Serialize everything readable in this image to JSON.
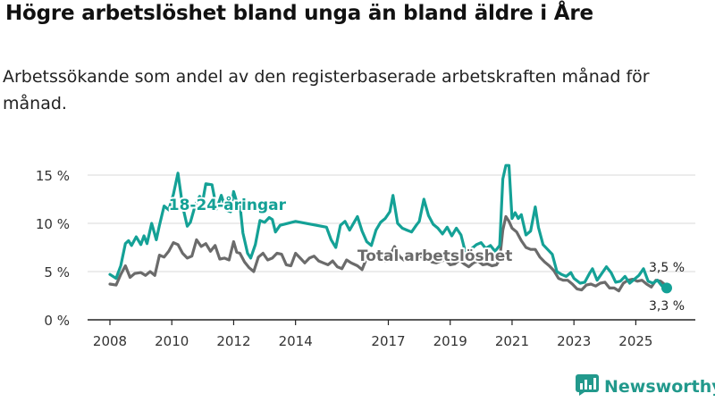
{
  "title": "Högre arbetslöshet bland unga än bland äldre i Åre",
  "subtitle": "Arbetssökande som andel av den registerbaserade arbetskraften månad för månad.",
  "brand": {
    "name": "Newsworthy",
    "icon": "newsworthy-chart-logo-icon",
    "color": "#22998c"
  },
  "colors": {
    "young": "#14a196",
    "total": "#6b6b6b",
    "grid": "#d9d9d9",
    "axis": "#333333"
  },
  "chart_data": {
    "type": "line",
    "title": "Högre arbetslöshet bland unga än bland äldre i Åre",
    "xlabel": "",
    "ylabel": "",
    "xlim": [
      2008,
      2026.5
    ],
    "ylim": [
      0,
      15
    ],
    "grid": true,
    "x_ticks": [
      2008,
      2010,
      2012,
      2014,
      2017,
      2019,
      2021,
      2023,
      2025
    ],
    "x_tick_labels": [
      "2008",
      "2010",
      "2012",
      "2014",
      "2017",
      "2019",
      "2021",
      "2023",
      "2025"
    ],
    "y_ticks": [
      0,
      5,
      10,
      15
    ],
    "y_tick_labels": [
      "0 %",
      "5 %",
      "10 %",
      "15 %"
    ],
    "series": [
      {
        "name": "18-24-åringar",
        "label_at": [
          2009.9,
          11.4
        ],
        "end_value_label": "3,3 %",
        "points": [
          [
            2008.0,
            4.7
          ],
          [
            2008.2,
            4.3
          ],
          [
            2008.35,
            5.6
          ],
          [
            2008.5,
            7.9
          ],
          [
            2008.6,
            8.2
          ],
          [
            2008.7,
            7.7
          ],
          [
            2008.85,
            8.6
          ],
          [
            2009.0,
            7.8
          ],
          [
            2009.1,
            8.7
          ],
          [
            2009.2,
            7.9
          ],
          [
            2009.35,
            10.0
          ],
          [
            2009.5,
            8.3
          ],
          [
            2009.6,
            9.8
          ],
          [
            2009.75,
            11.8
          ],
          [
            2009.9,
            11.4
          ],
          [
            2010.05,
            13.0
          ],
          [
            2010.2,
            15.2
          ],
          [
            2010.35,
            11.8
          ],
          [
            2010.5,
            9.7
          ],
          [
            2010.6,
            10.1
          ],
          [
            2010.75,
            11.8
          ],
          [
            2010.9,
            12.8
          ],
          [
            2011.0,
            12.3
          ],
          [
            2011.1,
            14.1
          ],
          [
            2011.3,
            14.0
          ],
          [
            2011.45,
            11.5
          ],
          [
            2011.6,
            12.9
          ],
          [
            2011.75,
            11.4
          ],
          [
            2011.9,
            11.2
          ],
          [
            2012.0,
            13.3
          ],
          [
            2012.1,
            12.2
          ],
          [
            2012.2,
            12.0
          ],
          [
            2012.3,
            9.0
          ],
          [
            2012.45,
            6.9
          ],
          [
            2012.55,
            6.4
          ],
          [
            2012.7,
            7.8
          ],
          [
            2012.85,
            10.3
          ],
          [
            2013.0,
            10.1
          ],
          [
            2013.15,
            10.6
          ],
          [
            2013.25,
            10.4
          ],
          [
            2013.35,
            9.1
          ],
          [
            2013.5,
            9.8
          ],
          [
            2014.0,
            10.2
          ],
          [
            2014.5,
            9.9
          ],
          [
            2015.0,
            9.6
          ],
          [
            2015.15,
            8.3
          ],
          [
            2015.3,
            7.5
          ],
          [
            2015.45,
            9.8
          ],
          [
            2015.6,
            10.2
          ],
          [
            2015.75,
            9.3
          ],
          [
            2016.0,
            10.7
          ],
          [
            2016.15,
            9.2
          ],
          [
            2016.3,
            8.1
          ],
          [
            2016.45,
            7.7
          ],
          [
            2016.6,
            9.3
          ],
          [
            2016.75,
            10.1
          ],
          [
            2016.9,
            10.5
          ],
          [
            2017.05,
            11.2
          ],
          [
            2017.15,
            12.9
          ],
          [
            2017.3,
            10.0
          ],
          [
            2017.45,
            9.5
          ],
          [
            2017.6,
            9.3
          ],
          [
            2017.75,
            9.1
          ],
          [
            2017.9,
            9.8
          ],
          [
            2018.0,
            10.2
          ],
          [
            2018.15,
            12.5
          ],
          [
            2018.3,
            10.8
          ],
          [
            2018.45,
            9.9
          ],
          [
            2018.6,
            9.5
          ],
          [
            2018.75,
            8.9
          ],
          [
            2018.9,
            9.6
          ],
          [
            2019.05,
            8.7
          ],
          [
            2019.2,
            9.5
          ],
          [
            2019.35,
            8.8
          ],
          [
            2019.5,
            6.9
          ],
          [
            2019.7,
            7.4
          ],
          [
            2019.85,
            7.8
          ],
          [
            2020.0,
            8.0
          ],
          [
            2020.15,
            7.4
          ],
          [
            2020.3,
            7.7
          ],
          [
            2020.45,
            7.1
          ],
          [
            2020.6,
            7.7
          ],
          [
            2020.7,
            14.6
          ],
          [
            2020.8,
            16.0
          ],
          [
            2020.9,
            16.0
          ],
          [
            2021.0,
            10.5
          ],
          [
            2021.1,
            11.1
          ],
          [
            2021.2,
            10.5
          ],
          [
            2021.3,
            10.9
          ],
          [
            2021.45,
            8.8
          ],
          [
            2021.6,
            9.2
          ],
          [
            2021.75,
            11.7
          ],
          [
            2021.85,
            9.6
          ],
          [
            2022.0,
            7.8
          ],
          [
            2022.15,
            7.3
          ],
          [
            2022.3,
            6.8
          ],
          [
            2022.45,
            5.0
          ],
          [
            2022.6,
            4.7
          ],
          [
            2022.75,
            4.5
          ],
          [
            2022.9,
            4.9
          ],
          [
            2023.0,
            4.3
          ],
          [
            2023.2,
            3.8
          ],
          [
            2023.35,
            3.9
          ],
          [
            2023.5,
            4.8
          ],
          [
            2023.6,
            5.3
          ],
          [
            2023.75,
            4.1
          ],
          [
            2023.9,
            4.8
          ],
          [
            2024.05,
            5.5
          ],
          [
            2024.2,
            4.9
          ],
          [
            2024.35,
            3.9
          ],
          [
            2024.5,
            4.0
          ],
          [
            2024.65,
            4.5
          ],
          [
            2024.8,
            3.8
          ],
          [
            2024.95,
            4.2
          ],
          [
            2025.1,
            4.6
          ],
          [
            2025.25,
            5.3
          ],
          [
            2025.4,
            4.0
          ],
          [
            2025.55,
            3.8
          ],
          [
            2025.7,
            4.1
          ],
          [
            2025.85,
            3.5
          ],
          [
            2026.0,
            3.3
          ]
        ]
      },
      {
        "name": "Total arbetslöshet",
        "label_at": [
          2016.0,
          6.1
        ],
        "end_value_label": "3,5 %",
        "points": [
          [
            2008.0,
            3.7
          ],
          [
            2008.2,
            3.6
          ],
          [
            2008.35,
            4.7
          ],
          [
            2008.5,
            5.6
          ],
          [
            2008.65,
            4.4
          ],
          [
            2008.8,
            4.8
          ],
          [
            2009.0,
            4.9
          ],
          [
            2009.15,
            4.6
          ],
          [
            2009.3,
            5.0
          ],
          [
            2009.45,
            4.6
          ],
          [
            2009.6,
            6.7
          ],
          [
            2009.75,
            6.5
          ],
          [
            2009.9,
            7.1
          ],
          [
            2010.05,
            8.0
          ],
          [
            2010.2,
            7.8
          ],
          [
            2010.35,
            6.9
          ],
          [
            2010.5,
            6.4
          ],
          [
            2010.65,
            6.6
          ],
          [
            2010.8,
            8.3
          ],
          [
            2010.95,
            7.6
          ],
          [
            2011.1,
            7.9
          ],
          [
            2011.25,
            7.1
          ],
          [
            2011.4,
            7.7
          ],
          [
            2011.55,
            6.3
          ],
          [
            2011.7,
            6.4
          ],
          [
            2011.85,
            6.2
          ],
          [
            2012.0,
            8.1
          ],
          [
            2012.1,
            7.0
          ],
          [
            2012.2,
            6.9
          ],
          [
            2012.35,
            6.0
          ],
          [
            2012.5,
            5.4
          ],
          [
            2012.65,
            5.0
          ],
          [
            2012.8,
            6.5
          ],
          [
            2012.95,
            6.9
          ],
          [
            2013.1,
            6.2
          ],
          [
            2013.25,
            6.4
          ],
          [
            2013.4,
            6.9
          ],
          [
            2013.55,
            6.8
          ],
          [
            2013.7,
            5.7
          ],
          [
            2013.85,
            5.6
          ],
          [
            2014.0,
            6.9
          ],
          [
            2014.15,
            6.4
          ],
          [
            2014.3,
            5.9
          ],
          [
            2014.45,
            6.4
          ],
          [
            2014.6,
            6.6
          ],
          [
            2014.75,
            6.1
          ],
          [
            2014.9,
            5.9
          ],
          [
            2015.05,
            5.7
          ],
          [
            2015.2,
            6.1
          ],
          [
            2015.35,
            5.5
          ],
          [
            2015.5,
            5.3
          ],
          [
            2015.65,
            6.2
          ],
          [
            2015.8,
            5.9
          ],
          [
            2016.0,
            5.6
          ],
          [
            2016.15,
            5.2
          ],
          [
            2016.3,
            6.4
          ],
          [
            2016.45,
            6.1
          ],
          [
            2016.6,
            6.5
          ],
          [
            2016.75,
            6.9
          ],
          [
            2016.9,
            6.1
          ],
          [
            2017.05,
            6.6
          ],
          [
            2017.2,
            7.6
          ],
          [
            2017.35,
            6.6
          ],
          [
            2017.5,
            6.2
          ],
          [
            2017.65,
            6.4
          ],
          [
            2017.8,
            6.3
          ],
          [
            2017.95,
            6.6
          ],
          [
            2018.1,
            6.5
          ],
          [
            2018.25,
            6.8
          ],
          [
            2018.4,
            6.0
          ],
          [
            2018.55,
            5.9
          ],
          [
            2018.7,
            6.1
          ],
          [
            2018.85,
            6.2
          ],
          [
            2019.0,
            5.7
          ],
          [
            2019.15,
            5.8
          ],
          [
            2019.3,
            6.2
          ],
          [
            2019.45,
            5.8
          ],
          [
            2019.6,
            5.5
          ],
          [
            2019.75,
            5.9
          ],
          [
            2019.9,
            6.1
          ],
          [
            2020.05,
            5.7
          ],
          [
            2020.2,
            5.8
          ],
          [
            2020.35,
            5.6
          ],
          [
            2020.5,
            5.7
          ],
          [
            2020.6,
            6.3
          ],
          [
            2020.7,
            9.3
          ],
          [
            2020.8,
            10.7
          ],
          [
            2020.9,
            10.2
          ],
          [
            2021.0,
            9.5
          ],
          [
            2021.15,
            9.1
          ],
          [
            2021.3,
            8.2
          ],
          [
            2021.45,
            7.5
          ],
          [
            2021.6,
            7.3
          ],
          [
            2021.75,
            7.3
          ],
          [
            2021.9,
            6.5
          ],
          [
            2022.05,
            6.0
          ],
          [
            2022.2,
            5.6
          ],
          [
            2022.35,
            5.1
          ],
          [
            2022.5,
            4.3
          ],
          [
            2022.65,
            4.1
          ],
          [
            2022.8,
            4.1
          ],
          [
            2022.95,
            3.7
          ],
          [
            2023.1,
            3.2
          ],
          [
            2023.25,
            3.1
          ],
          [
            2023.4,
            3.6
          ],
          [
            2023.55,
            3.7
          ],
          [
            2023.7,
            3.5
          ],
          [
            2023.85,
            3.8
          ],
          [
            2024.0,
            3.9
          ],
          [
            2024.15,
            3.3
          ],
          [
            2024.3,
            3.3
          ],
          [
            2024.45,
            3.0
          ],
          [
            2024.6,
            3.8
          ],
          [
            2024.75,
            4.1
          ],
          [
            2024.9,
            4.2
          ],
          [
            2025.05,
            4.0
          ],
          [
            2025.2,
            4.1
          ],
          [
            2025.35,
            3.7
          ],
          [
            2025.5,
            3.4
          ],
          [
            2025.65,
            4.1
          ],
          [
            2025.8,
            4.0
          ],
          [
            2026.0,
            3.5
          ]
        ]
      }
    ]
  }
}
